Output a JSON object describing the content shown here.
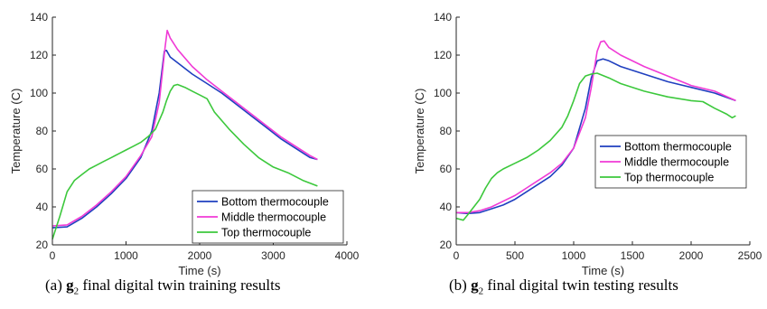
{
  "captions": [
    {
      "tag": "(a)",
      "bold": "g",
      "sub": "2",
      "text": "final digital twin training results"
    },
    {
      "tag": "(b)",
      "bold": "g",
      "sub": "2",
      "text": "final digital twin testing results"
    }
  ],
  "colors": {
    "bottom": "#1f3fbf",
    "middle": "#f03ad6",
    "top": "#3cc83c",
    "axis": "#262626"
  },
  "chart_data": [
    {
      "type": "line",
      "title": "",
      "xlabel": "Time (s)",
      "ylabel": "Temperature (C)",
      "xlim": [
        0,
        4000
      ],
      "ylim": [
        20,
        140
      ],
      "xticks": [
        0,
        1000,
        2000,
        3000,
        4000
      ],
      "yticks": [
        20,
        40,
        60,
        80,
        100,
        120,
        140
      ],
      "grid": false,
      "legend_position": "lower-right",
      "series": [
        {
          "name": "Bottom thermocouple",
          "color": "#1f3fbf",
          "x": [
            0,
            200,
            400,
            600,
            800,
            1000,
            1200,
            1350,
            1450,
            1520,
            1550,
            1600,
            1700,
            1900,
            2100,
            2300,
            2500,
            2700,
            2900,
            3100,
            3300,
            3500,
            3600
          ],
          "y": [
            29,
            29.5,
            34,
            40,
            47,
            55,
            66,
            80,
            100,
            122,
            122.5,
            119,
            116,
            110,
            105,
            100,
            94,
            88,
            82,
            76,
            71,
            66,
            65
          ]
        },
        {
          "name": "Middle thermocouple",
          "color": "#f03ad6",
          "x": [
            0,
            200,
            400,
            600,
            800,
            1000,
            1200,
            1350,
            1450,
            1530,
            1560,
            1600,
            1700,
            1900,
            2100,
            2300,
            2500,
            2700,
            2900,
            3100,
            3300,
            3500,
            3600
          ],
          "y": [
            30,
            30.5,
            35,
            41,
            48,
            56,
            67,
            77,
            95,
            124,
            133,
            129,
            123,
            114,
            107,
            101,
            95,
            89,
            83,
            77,
            72,
            67,
            65
          ]
        },
        {
          "name": "Top thermocouple",
          "color": "#3cc83c",
          "x": [
            0,
            100,
            200,
            300,
            400,
            500,
            600,
            700,
            800,
            900,
            1000,
            1100,
            1200,
            1300,
            1400,
            1500,
            1550,
            1600,
            1650,
            1700,
            1800,
            1900,
            2000,
            2100,
            2200,
            2400,
            2600,
            2800,
            3000,
            3200,
            3400,
            3600
          ],
          "y": [
            23,
            35,
            48,
            54,
            57,
            60,
            62,
            64,
            66,
            68,
            70,
            72,
            74,
            77,
            81,
            90,
            96,
            101,
            104,
            104.5,
            103,
            101,
            99,
            97,
            90,
            81,
            73,
            66,
            61,
            58,
            54,
            51
          ]
        }
      ]
    },
    {
      "type": "line",
      "title": "",
      "xlabel": "Time (s)",
      "ylabel": "Temperature (C)",
      "xlim": [
        0,
        2500
      ],
      "ylim": [
        20,
        140
      ],
      "xticks": [
        0,
        500,
        1000,
        1500,
        2000,
        2500
      ],
      "yticks": [
        20,
        40,
        60,
        80,
        100,
        120,
        140
      ],
      "grid": false,
      "legend_position": "right",
      "series": [
        {
          "name": "Bottom thermocouple",
          "color": "#1f3fbf",
          "x": [
            0,
            100,
            200,
            300,
            400,
            500,
            600,
            700,
            800,
            900,
            1000,
            1100,
            1150,
            1200,
            1250,
            1300,
            1400,
            1600,
            1800,
            2000,
            2200,
            2380
          ],
          "y": [
            37,
            36.5,
            37,
            39,
            41,
            44,
            48,
            52,
            56,
            62,
            71,
            92,
            108,
            117,
            118,
            117,
            114,
            110,
            106,
            103,
            100,
            96
          ]
        },
        {
          "name": "Middle thermocouple",
          "color": "#f03ad6",
          "x": [
            0,
            100,
            200,
            300,
            400,
            500,
            600,
            700,
            800,
            900,
            1000,
            1100,
            1150,
            1200,
            1230,
            1260,
            1300,
            1400,
            1600,
            1800,
            2000,
            2200,
            2380
          ],
          "y": [
            37,
            37,
            38,
            40,
            43,
            46,
            50,
            54,
            58,
            63,
            71,
            87,
            103,
            122,
            127,
            127.5,
            124,
            120,
            114,
            109,
            104,
            101,
            96
          ]
        },
        {
          "name": "Top thermocouple",
          "color": "#3cc83c",
          "x": [
            0,
            60,
            100,
            150,
            200,
            250,
            300,
            350,
            400,
            500,
            600,
            700,
            800,
            900,
            950,
            1000,
            1050,
            1100,
            1150,
            1200,
            1300,
            1400,
            1600,
            1800,
            2000,
            2100,
            2200,
            2300,
            2350,
            2380
          ],
          "y": [
            34,
            33,
            36,
            40,
            44,
            50,
            55,
            58,
            60,
            63,
            66,
            70,
            75,
            82,
            88,
            96,
            105,
            109,
            110,
            110.5,
            108,
            105,
            101,
            98,
            96,
            95.5,
            92,
            89,
            87,
            88
          ]
        }
      ]
    }
  ]
}
